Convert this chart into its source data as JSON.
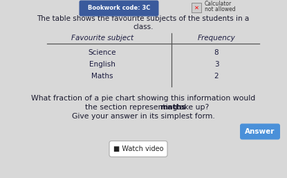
{
  "background_color": "#d8d8d8",
  "bookwork_code": "Bookwork code: 3C",
  "calculator_line1": "Calculator",
  "calculator_line2": "not allowed",
  "title_line1": "The table shows the favourite subjects of the students in a",
  "title_line2": "class.",
  "col1_header": "Favourite subject",
  "col2_header": "Frequency",
  "rows": [
    {
      "subject": "Science",
      "frequency": "8"
    },
    {
      "subject": "English",
      "frequency": "3"
    },
    {
      "subject": "Maths",
      "frequency": "2"
    }
  ],
  "question_line1": "What fraction of a pie chart showing this information would",
  "question_line2_pre": "the section representing ",
  "question_bold": "maths",
  "question_line2_post": " take up?",
  "question_line3": "Give your answer in its simplest form.",
  "answer_button_text": "Answer",
  "answer_button_color": "#4a90d9",
  "watch_video_text": "■ Watch video",
  "bookwork_button_color": "#3a5a9c",
  "bookwork_button_text_color": "#ffffff",
  "text_color": "#1a1a2e",
  "table_text_color": "#1a1a3e",
  "header_color": "#1a1a3e",
  "divider_color": "#555555"
}
